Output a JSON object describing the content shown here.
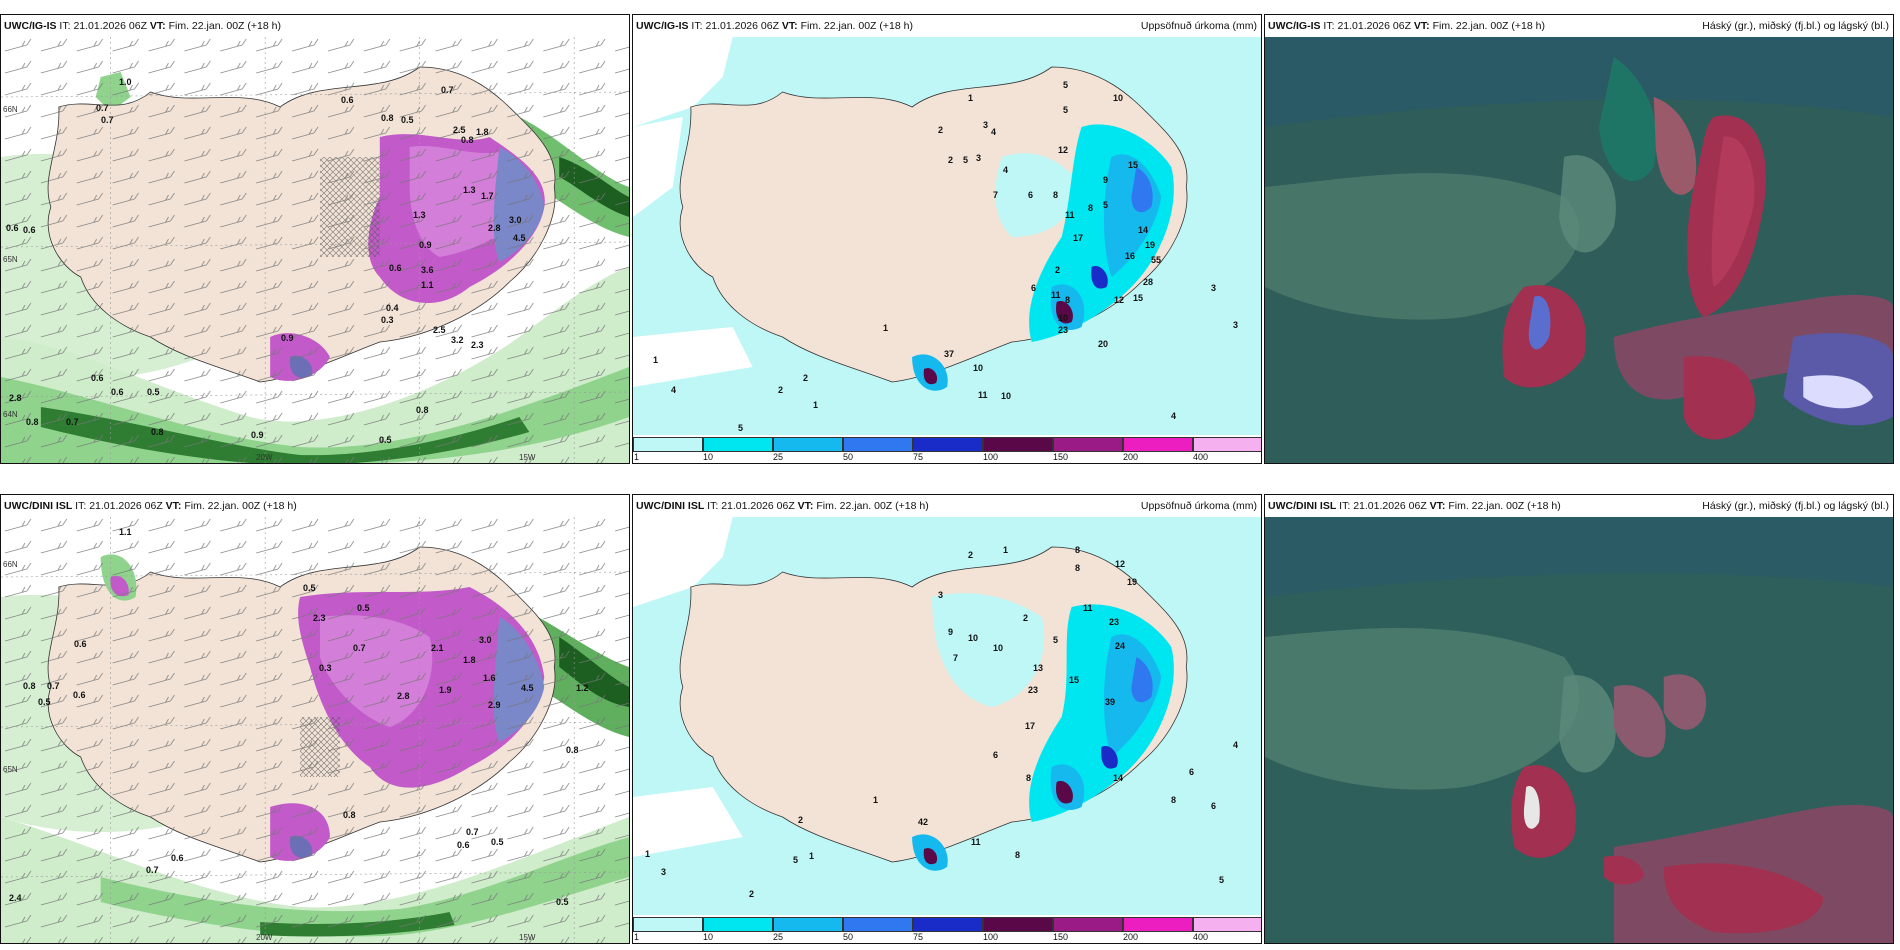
{
  "panels": {
    "top_left": {
      "model": "UWC/IG-IS",
      "it_label": "IT:",
      "it": "21.01.2026 06Z",
      "vt_label": "VT:",
      "vt": "Fim. 22.jan. 00Z",
      "lead": "(+18 h)",
      "right": ""
    },
    "top_mid": {
      "model": "UWC/IG-IS",
      "it_label": "IT:",
      "it": "21.01.2026 06Z",
      "vt_label": "VT:",
      "vt": "Fim. 22.jan. 00Z",
      "lead": "(+18 h)",
      "right": "Uppsöfnuð úrkoma (mm)"
    },
    "top_right": {
      "model": "UWC/IG-IS",
      "it_label": "IT:",
      "it": "21.01.2026 06Z",
      "vt_label": "VT:",
      "vt": "Fim. 22.jan. 00Z",
      "lead": "(+18 h)",
      "right": "Háský (gr.), miðský (fj.bl.) og lágský (bl.)"
    },
    "bottom_left": {
      "model": "UWC/DINI ISL",
      "it_label": "IT:",
      "it": "21.01.2026 06Z",
      "vt_label": "VT:",
      "vt": "Fim. 22.jan. 00Z",
      "lead": "(+18 h)",
      "right": ""
    },
    "bottom_mid": {
      "model": "UWC/DINI ISL",
      "it_label": "IT:",
      "it": "21.01.2026 06Z",
      "vt_label": "VT:",
      "vt": "Fim. 22.jan. 00Z",
      "lead": "(+18 h)",
      "right": "Uppsöfnuð úrkoma (mm)"
    },
    "bottom_right": {
      "model": "UWC/DINI ISL",
      "it_label": "IT:",
      "it": "21.01.2026 06Z",
      "vt_label": "VT:",
      "vt": "Fim. 22.jan. 00Z",
      "lead": "(+18 h)",
      "right": "Háský (gr.), miðský (fj.bl.) og lágský (bl.)"
    }
  },
  "axes": {
    "lat_66": "66N",
    "lat_64": "64N",
    "lat_65": "65N",
    "lon_20": "20W",
    "lon_15": "15W"
  },
  "colorbar": {
    "ticks": [
      "1",
      "10",
      "25",
      "50",
      "75",
      "100",
      "150",
      "200",
      "400"
    ],
    "colors": [
      "#bff7f7",
      "#00e6f0",
      "#16b9ee",
      "#2f78f0",
      "#1a2cc8",
      "#5a0848",
      "#9a1a86",
      "#ec1ec0",
      "#f5b0f0"
    ]
  },
  "top_left_values": [
    "0.7",
    "0.7",
    "1.0",
    "0.6",
    "0.6",
    "0.7",
    "0.8",
    "0.5",
    "0.6",
    "0.8",
    "2.5",
    "1.8",
    "1.3",
    "1.7",
    "2.8",
    "3.0",
    "4.5",
    "1.3",
    "0.9",
    "0.6",
    "3.6",
    "1.1",
    "0.4",
    "0.3",
    "2.5",
    "3.2",
    "2.3",
    "0.9",
    "0.6",
    "0.6",
    "0.5",
    "0.8",
    "0.7",
    "0.8",
    "2.8",
    "0.8",
    "0.9",
    "0.5"
  ],
  "top_mid_values": [
    "1",
    "2",
    "3",
    "4",
    "5",
    "5",
    "10",
    "2",
    "5",
    "3",
    "4",
    "12",
    "8",
    "6",
    "7",
    "11",
    "9",
    "5",
    "8",
    "15",
    "17",
    "14",
    "19",
    "16",
    "55",
    "28",
    "15",
    "12",
    "2",
    "8",
    "6",
    "11",
    "10",
    "23",
    "37",
    "10",
    "1",
    "1",
    "4",
    "2",
    "2",
    "1",
    "5",
    "11",
    "10",
    "20",
    "3",
    "3",
    "4"
  ],
  "bottom_left_values": [
    "1.1",
    "0.5",
    "0.5",
    "0.8",
    "0.7",
    "0.6",
    "0.5",
    "0.6",
    "2.3",
    "0.7",
    "1.8",
    "2.1",
    "3.0",
    "1.9",
    "2.8",
    "1.6",
    "2.9",
    "0.3",
    "0.8",
    "0.7",
    "0.6",
    "0.5",
    "2.4",
    "0.8",
    "0.5",
    "0.6",
    "0.7",
    "1.2",
    "4.5"
  ],
  "bottom_mid_values": [
    "2",
    "1",
    "8",
    "8",
    "12",
    "19",
    "11",
    "3",
    "9",
    "10",
    "7",
    "10",
    "2",
    "5",
    "23",
    "24",
    "13",
    "15",
    "39",
    "23",
    "17",
    "6",
    "8",
    "14",
    "6",
    "6",
    "5",
    "4",
    "1",
    "2",
    "3",
    "42",
    "11",
    "8",
    "5",
    "1",
    "1",
    "2",
    "8"
  ]
}
